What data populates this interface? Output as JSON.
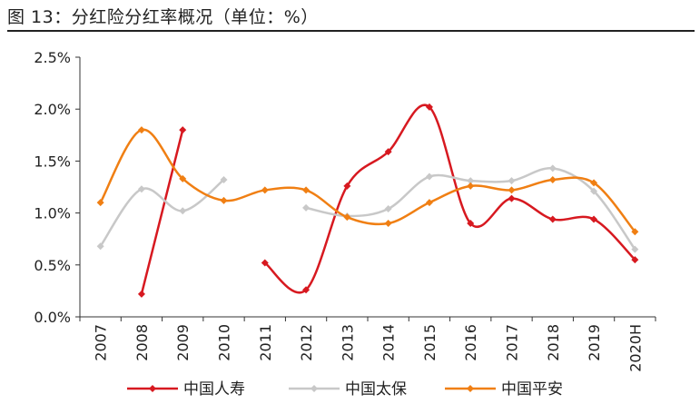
{
  "figure_title": "图 13：分红险分红率概况（单位：%）",
  "chart_data": {
    "type": "line",
    "title": "",
    "xlabel": "",
    "ylabel": "",
    "categories": [
      "2007",
      "2008",
      "2009",
      "2010",
      "2011",
      "2012",
      "2013",
      "2014",
      "2015",
      "2016",
      "2017",
      "2018",
      "2019",
      "2020H"
    ],
    "ylim": [
      0,
      2.5
    ],
    "yticks": [
      0,
      0.5,
      1.0,
      1.5,
      2.0,
      2.5
    ],
    "ytick_labels": [
      "0.0%",
      "0.5%",
      "1.0%",
      "1.5%",
      "2.0%",
      "2.5%"
    ],
    "grid": false,
    "smooth": true,
    "legend_position": "bottom",
    "series": [
      {
        "name": "中国人寿",
        "color": "#d71920",
        "values": [
          null,
          0.22,
          1.8,
          null,
          0.52,
          0.26,
          1.26,
          1.59,
          2.02,
          0.9,
          1.14,
          0.94,
          0.94,
          0.55
        ]
      },
      {
        "name": "中国太保",
        "color": "#c8c8c8",
        "values": [
          0.68,
          1.23,
          1.02,
          1.32,
          null,
          1.05,
          0.97,
          1.04,
          1.35,
          1.31,
          1.31,
          1.43,
          1.21,
          0.65
        ]
      },
      {
        "name": "中国平安",
        "color": "#f07f13",
        "values": [
          1.1,
          1.8,
          1.33,
          1.12,
          1.22,
          1.22,
          0.96,
          0.9,
          1.1,
          1.26,
          1.22,
          1.32,
          1.29,
          0.82
        ]
      }
    ]
  }
}
